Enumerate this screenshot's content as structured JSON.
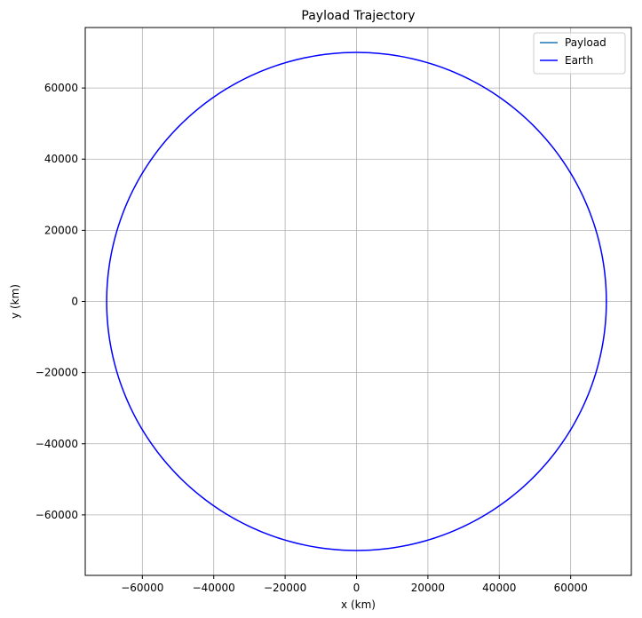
{
  "chart_data": {
    "type": "line",
    "title": "Payload Trajectory",
    "xlabel": "x (km)",
    "ylabel": "y (km)",
    "xlim": [
      -76000,
      77000
    ],
    "ylim": [
      -77000,
      77000
    ],
    "xticks": [
      -60000,
      -40000,
      -20000,
      0,
      20000,
      40000,
      60000
    ],
    "xtick_labels": [
      "−60000",
      "−40000",
      "−20000",
      "0",
      "20000",
      "40000",
      "60000"
    ],
    "yticks": [
      -60000,
      -40000,
      -20000,
      0,
      20000,
      40000,
      60000
    ],
    "ytick_labels": [
      "−60000",
      "−40000",
      "−20000",
      "0",
      "20000",
      "40000",
      "60000"
    ],
    "grid": true,
    "legend": "top-right",
    "series": [
      {
        "name": "Payload",
        "color": "#1f77b4",
        "x": [
          70000,
          70000
        ],
        "y": [
          0,
          0
        ]
      },
      {
        "name": "Earth",
        "color": "#0000ff",
        "shape": "circle",
        "center": [
          0,
          0
        ],
        "radius": 70000
      }
    ]
  }
}
